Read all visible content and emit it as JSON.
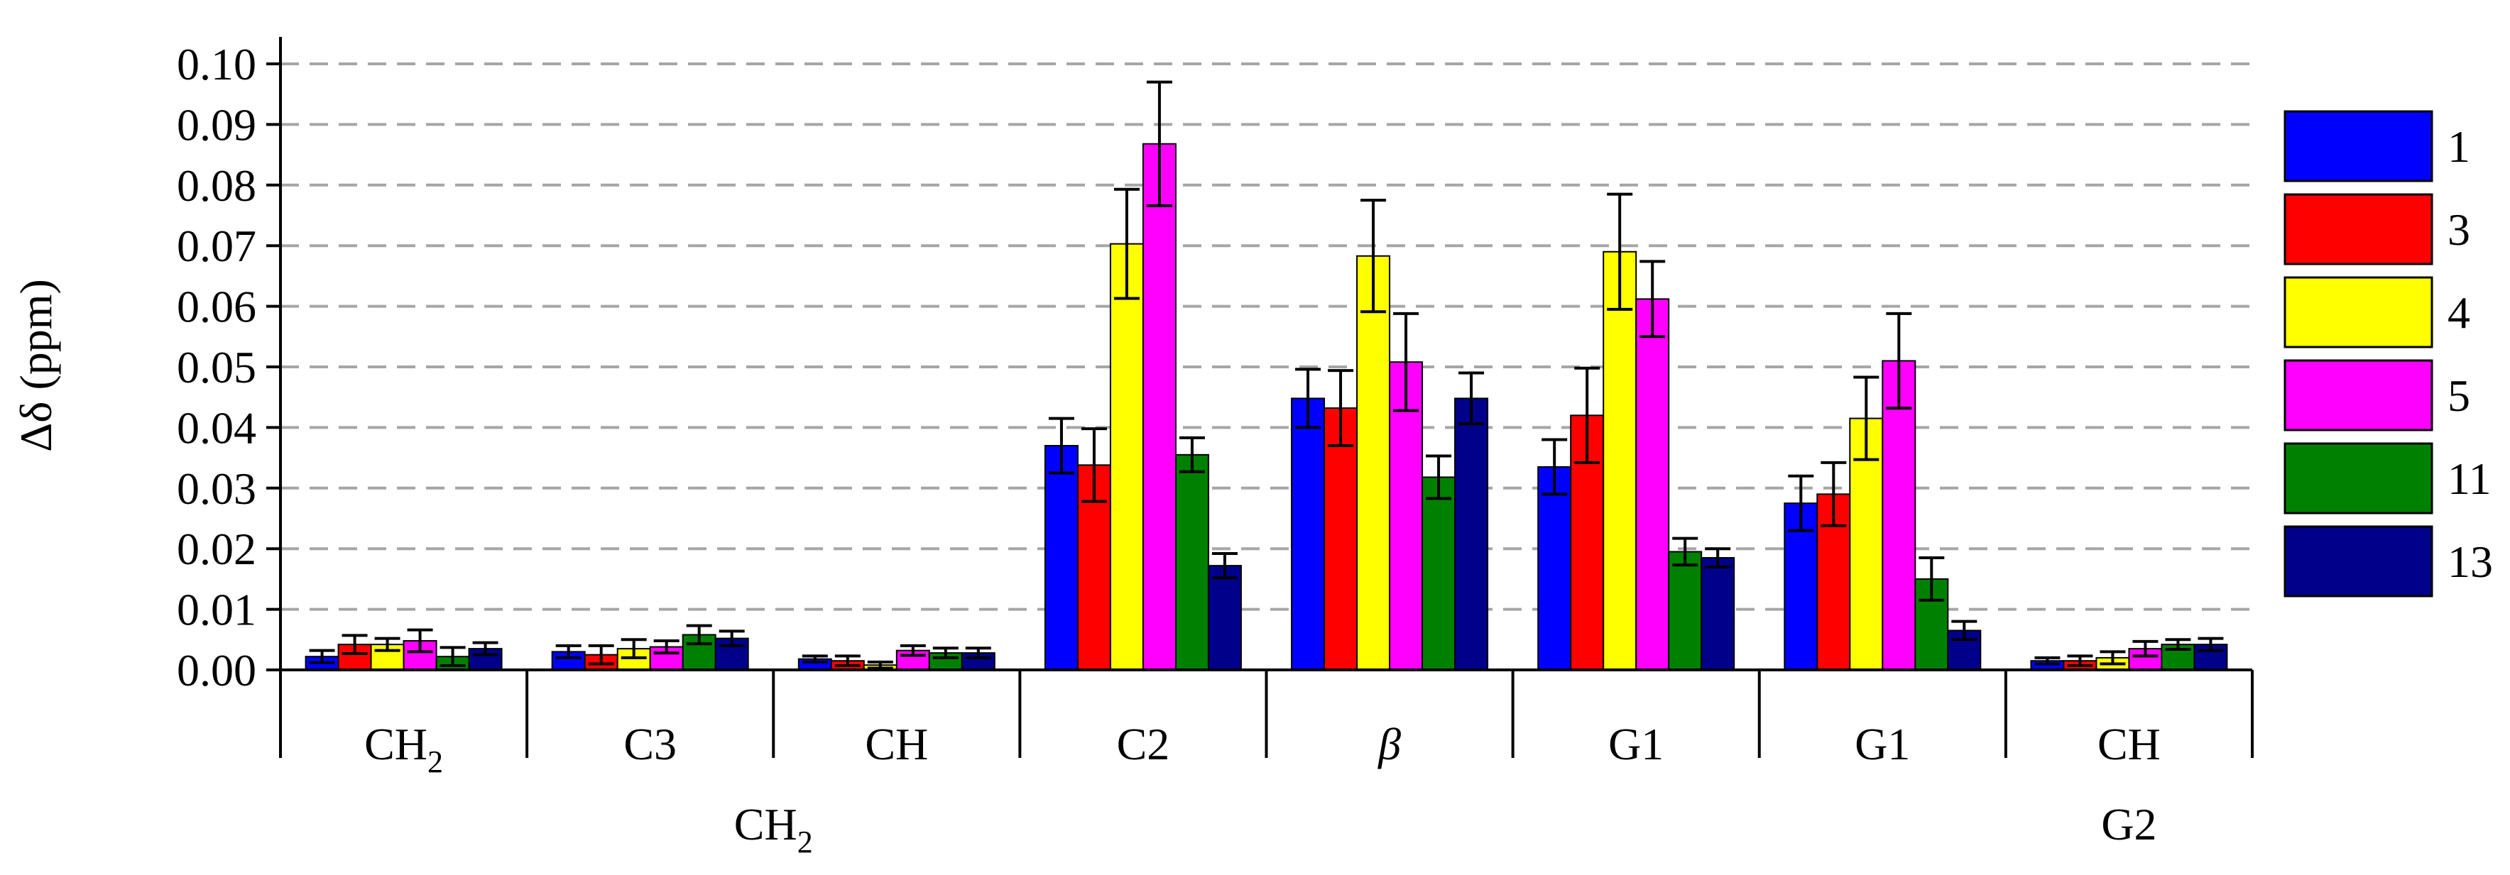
{
  "chart_data": {
    "type": "bar",
    "ylabel": "Δδ (ppm)",
    "ylim": [
      0,
      0.1
    ],
    "yticks": [
      "0.00",
      "0.01",
      "0.02",
      "0.03",
      "0.04",
      "0.05",
      "0.06",
      "0.07",
      "0.08",
      "0.09",
      "0.10"
    ],
    "grid": true,
    "legend_position": "right",
    "categories": [
      {
        "label": "CH",
        "sub": "2",
        "italic": false
      },
      {
        "label": "C3",
        "sub": "",
        "italic": false
      },
      {
        "label": "CH",
        "sub": "",
        "italic": false
      },
      {
        "label": "C2",
        "sub": "",
        "italic": false
      },
      {
        "label": "β",
        "sub": "",
        "italic": true
      },
      {
        "label": "G1",
        "sub": "",
        "italic": false
      },
      {
        "label": "G1",
        "sub": "",
        "italic": false
      },
      {
        "label": "CH",
        "sub": "",
        "italic": false
      }
    ],
    "groups": [
      {
        "label": "CH",
        "sub": "2",
        "span": [
          0,
          3
        ]
      },
      {
        "label": "G2",
        "sub": "",
        "span": [
          7,
          7
        ]
      }
    ],
    "series": [
      {
        "name": "1",
        "color": "#0000ff",
        "values": [
          0.0022,
          0.003,
          0.0018,
          0.037,
          0.0448,
          0.0335,
          0.0275,
          0.0015
        ],
        "errors": [
          0.001,
          0.001,
          0.0005,
          0.0045,
          0.0048,
          0.0045,
          0.0045,
          0.0005
        ]
      },
      {
        "name": "3",
        "color": "#ff0000",
        "values": [
          0.0042,
          0.0025,
          0.0015,
          0.0338,
          0.0432,
          0.042,
          0.029,
          0.0015
        ],
        "errors": [
          0.0015,
          0.0015,
          0.0008,
          0.006,
          0.0062,
          0.0078,
          0.0052,
          0.0008
        ]
      },
      {
        "name": "4",
        "color": "#ffff00",
        "values": [
          0.0042,
          0.0035,
          0.0008,
          0.0703,
          0.0683,
          0.069,
          0.0415,
          0.002
        ],
        "errors": [
          0.001,
          0.0015,
          0.0005,
          0.009,
          0.0092,
          0.0095,
          0.0068,
          0.001
        ]
      },
      {
        "name": "5",
        "color": "#ff00ff",
        "values": [
          0.0048,
          0.0038,
          0.0032,
          0.0868,
          0.0508,
          0.0612,
          0.051,
          0.0035
        ],
        "errors": [
          0.0018,
          0.001,
          0.0008,
          0.0102,
          0.008,
          0.0062,
          0.0078,
          0.0012
        ]
      },
      {
        "name": "11",
        "color": "#008000",
        "values": [
          0.0022,
          0.0058,
          0.0028,
          0.0355,
          0.0318,
          0.0195,
          0.015,
          0.0042
        ],
        "errors": [
          0.0015,
          0.0015,
          0.0008,
          0.0028,
          0.0035,
          0.0022,
          0.0035,
          0.0008
        ]
      },
      {
        "name": "13",
        "color": "#00008b",
        "values": [
          0.0035,
          0.0052,
          0.0028,
          0.0172,
          0.0448,
          0.0185,
          0.0065,
          0.0042
        ],
        "errors": [
          0.001,
          0.0012,
          0.0008,
          0.002,
          0.0042,
          0.0015,
          0.0015,
          0.001
        ]
      }
    ]
  }
}
